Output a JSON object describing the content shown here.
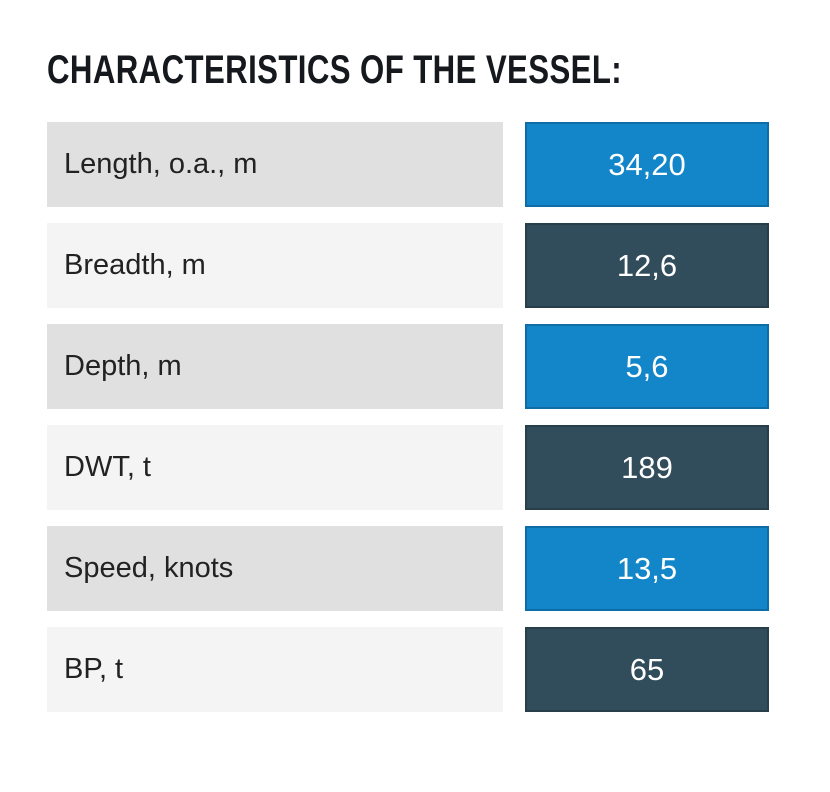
{
  "section": {
    "title": "CHARACTERISTICS OF THE VESSEL:"
  },
  "table": {
    "rows": [
      {
        "label": "Length, o.a., m",
        "value": "34,20"
      },
      {
        "label": "Breadth, m",
        "value": "12,6"
      },
      {
        "label": "Depth, m",
        "value": "5,6"
      },
      {
        "label": "DWT, t",
        "value": "189"
      },
      {
        "label": "Speed, knots",
        "value": "13,5"
      },
      {
        "label": "BP, t",
        "value": "65"
      }
    ]
  },
  "colors": {
    "accent_blue": "#1286c8",
    "dark_slate": "#314c5a",
    "row_bg_odd": "#e0e0e0",
    "row_bg_even": "#f4f4f4",
    "value_text": "#ffffff",
    "label_text": "#222222",
    "title_text": "#15181c"
  }
}
